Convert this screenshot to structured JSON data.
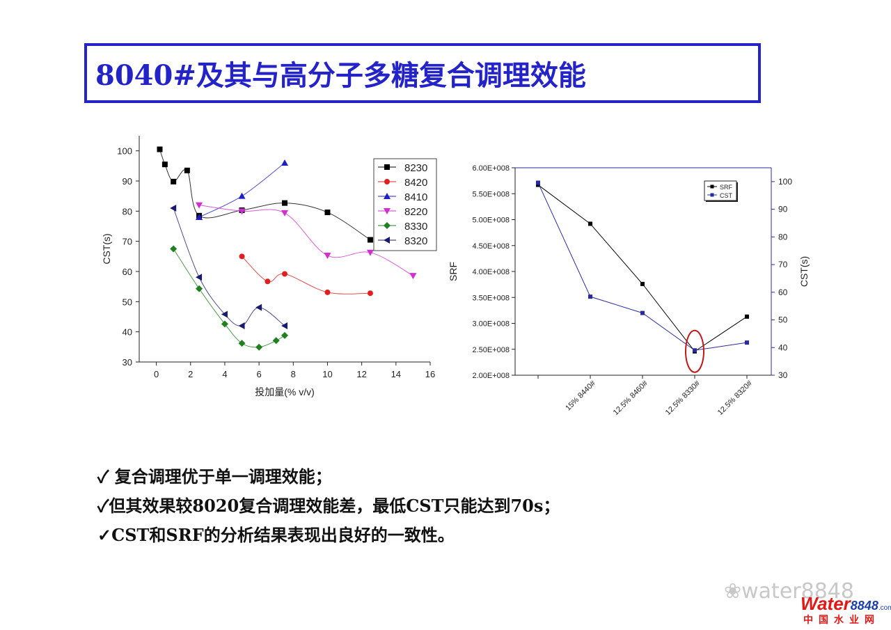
{
  "title": "8040#及其与高分子多糖复合调理效能",
  "bullets": [
    "✓ 复合调理优于单一调理效能；",
    "✓但其效果较8020复合调理效能差，最低CST只能达到70s；",
    "✓CST和SRF的分析结果表现出良好的一致性。"
  ],
  "watermark": "water8848",
  "logo": {
    "word": "Water",
    "num": "8848",
    "com": ".com",
    "cn": "中国水业网"
  },
  "chart_data": [
    {
      "type": "line",
      "xlabel": "投加量(% v/v)",
      "ylabel": "CST(s)",
      "xlim": [
        -1,
        16
      ],
      "ylim": [
        30,
        105
      ],
      "xticks": [
        0,
        2,
        4,
        6,
        8,
        10,
        12,
        14,
        16
      ],
      "yticks": [
        30,
        40,
        50,
        60,
        70,
        80,
        90,
        100
      ],
      "legend": "top-right",
      "series": [
        {
          "name": "8230",
          "marker": "square",
          "color": "#000000",
          "x": [
            0.2,
            0.5,
            1,
            1.8,
            2.5,
            5,
            7.5,
            10,
            12.5
          ],
          "y": [
            100.5,
            95.5,
            89.8,
            93.5,
            78.5,
            80.3,
            82.7,
            79.6,
            70.5
          ]
        },
        {
          "name": "8420",
          "marker": "circle",
          "color": "#e02020",
          "x": [
            5,
            6.5,
            7.5,
            10,
            12.5
          ],
          "y": [
            65,
            56.7,
            59.2,
            53.1,
            52.8
          ]
        },
        {
          "name": "8410",
          "marker": "triangle-up",
          "color": "#2020c0",
          "x": [
            2.5,
            5,
            7.5
          ],
          "y": [
            78,
            85,
            96
          ]
        },
        {
          "name": "8220",
          "marker": "triangle-down",
          "color": "#d030d0",
          "x": [
            2.5,
            5,
            7.5,
            10,
            12.5,
            15
          ],
          "y": [
            82,
            80,
            79.4,
            65.3,
            66.3,
            58.6
          ]
        },
        {
          "name": "8330",
          "marker": "diamond",
          "color": "#208020",
          "x": [
            1,
            2.5,
            4,
            5,
            6,
            7,
            7.5
          ],
          "y": [
            67.5,
            54.3,
            42.6,
            36.2,
            34.9,
            37.1,
            38.8
          ]
        },
        {
          "name": "8320",
          "marker": "triangle-left",
          "color": "#1a1a6e",
          "x": [
            1,
            2.5,
            4,
            5,
            6,
            7.5
          ],
          "y": [
            81,
            58.1,
            45.8,
            42,
            48.1,
            42
          ]
        }
      ]
    },
    {
      "type": "line",
      "ylabel": "SRF",
      "y2label": "CST(s)",
      "categories": [
        "",
        "15% 8440#",
        "12.5% 8460#",
        "12.5% 8330#",
        "12.5% 8320#"
      ],
      "ylim": [
        200000000,
        600000000
      ],
      "y2lim": [
        30,
        105
      ],
      "yticks": [
        "2.00E+008",
        "2.50E+008",
        "3.00E+008",
        "3.50E+008",
        "4.00E+008",
        "4.50E+008",
        "5.00E+008",
        "5.50E+008",
        "6.00E+008"
      ],
      "y2ticks": [
        30,
        40,
        50,
        60,
        70,
        80,
        90,
        100
      ],
      "legend": "top-right",
      "highlight": {
        "category": "12.5% 8330#",
        "color": "#c01818"
      },
      "series": [
        {
          "name": "SRF",
          "axis": "left",
          "marker": "square",
          "color": "#000000",
          "values": [
            567000000,
            492000000,
            376000000,
            246000000,
            313000000
          ]
        },
        {
          "name": "CST",
          "axis": "right",
          "marker": "square",
          "color": "#2a2aa0",
          "values": [
            99.6,
            58.4,
            52.5,
            39,
            41.8
          ]
        }
      ]
    }
  ]
}
